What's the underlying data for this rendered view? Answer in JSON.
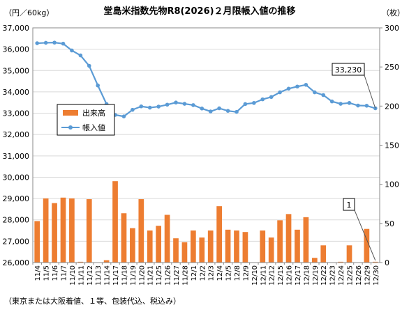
{
  "chart_data": {
    "type": "bar+line",
    "title": "堂島米指数先物R8(2026)２月限帳入値の推移",
    "left_unit": "（円／60kg）",
    "right_unit": "（枚）",
    "footnote": "（東京または大阪着値、１等、包装代込、税込み）",
    "left_axis": {
      "min": 26000,
      "max": 37000,
      "step": 1000,
      "tick_labels": [
        "26,000",
        "27,000",
        "28,000",
        "29,000",
        "30,000",
        "31,000",
        "32,000",
        "33,000",
        "34,000",
        "35,000",
        "36,000",
        "37,000"
      ]
    },
    "right_axis": {
      "min": 0,
      "max": 300,
      "step": 50,
      "tick_labels": [
        "0",
        "50",
        "100",
        "150",
        "200",
        "250",
        "300"
      ]
    },
    "categories": [
      "11/4",
      "11/5",
      "11/6",
      "11/7",
      "11/10",
      "11/11",
      "11/12",
      "11/13",
      "11/14",
      "11/17",
      "11/18",
      "11/19",
      "11/20",
      "11/21",
      "11/25",
      "11/26",
      "11/27",
      "11/28",
      "12/1",
      "12/2",
      "12/3",
      "12/4",
      "12/5",
      "12/8",
      "12/9",
      "12/10",
      "12/11",
      "12/12",
      "12/15",
      "12/16",
      "12/17",
      "12/18",
      "12/19",
      "12/22",
      "12/23",
      "12/24",
      "12/25",
      "12/26",
      "12/29",
      "12/30"
    ],
    "series": [
      {
        "name": "出来高",
        "type": "bar",
        "axis": "right",
        "color": "#ED7D31",
        "values": [
          53,
          82,
          76,
          83,
          82,
          1,
          81,
          0,
          3,
          104,
          63,
          44,
          81,
          41,
          47,
          61,
          31,
          26,
          41,
          32,
          41,
          72,
          42,
          41,
          39,
          0,
          41,
          32,
          54,
          62,
          42,
          58,
          6,
          22,
          0,
          1,
          22,
          0,
          43,
          1
        ]
      },
      {
        "name": "帳入値",
        "type": "line",
        "axis": "left",
        "color": "#5B9BD5",
        "values": [
          36280,
          36300,
          36310,
          36260,
          35940,
          35710,
          35220,
          34300,
          33430,
          32920,
          32850,
          33160,
          33320,
          33260,
          33310,
          33400,
          33500,
          33440,
          33380,
          33220,
          33080,
          33230,
          33110,
          33060,
          33430,
          33480,
          33650,
          33760,
          33980,
          34150,
          34250,
          34330,
          33980,
          33850,
          33550,
          33440,
          33480,
          33360,
          33350,
          33230
        ]
      }
    ],
    "annotations": [
      {
        "target_series": "帳入値",
        "index": 39,
        "text": "33,230"
      },
      {
        "target_series": "出来高",
        "index": 39,
        "text": "1"
      }
    ]
  }
}
